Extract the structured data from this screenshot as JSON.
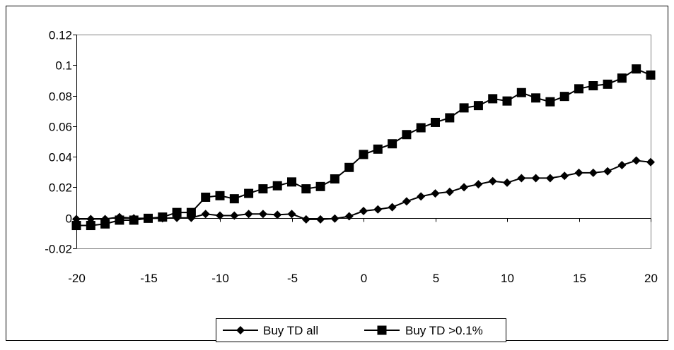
{
  "chart_data": {
    "type": "line",
    "title": "",
    "xlabel": "",
    "ylabel": "",
    "xlim": [
      -20,
      20
    ],
    "ylim": [
      -0.02,
      0.12
    ],
    "x_ticks": [
      -20,
      -15,
      -10,
      -5,
      0,
      5,
      10,
      15,
      20
    ],
    "x_tick_labels": [
      "-20",
      "-15",
      "-10",
      "-5",
      "0",
      "5",
      "10",
      "15",
      "20"
    ],
    "y_ticks": [
      -0.02,
      0,
      0.02,
      0.04,
      0.06,
      0.08,
      0.1,
      0.12
    ],
    "y_tick_labels": [
      "-0.02",
      "0",
      "0.02",
      "0.04",
      "0.06",
      "0.08",
      "0.1",
      "0.12"
    ],
    "grid": false,
    "legend_position": "bottom-center",
    "x": [
      -20,
      -19,
      -18,
      -17,
      -16,
      -15,
      -14,
      -13,
      -12,
      -11,
      -10,
      -9,
      -8,
      -7,
      -6,
      -5,
      -4,
      -3,
      -2,
      -1,
      0,
      1,
      2,
      3,
      4,
      5,
      6,
      7,
      8,
      9,
      10,
      11,
      12,
      13,
      14,
      15,
      16,
      17,
      18,
      19,
      20
    ],
    "series": [
      {
        "name": "Buy TD all",
        "marker": "diamond",
        "color": "#000000",
        "values": [
          -0.0008,
          -0.0008,
          -0.0008,
          0.0005,
          -0.0003,
          -0.0003,
          -0.0003,
          0.0,
          0.0,
          0.0025,
          0.0015,
          0.0015,
          0.0025,
          0.0025,
          0.002,
          0.0025,
          -0.001,
          -0.001,
          -0.0005,
          0.001,
          0.0045,
          0.0055,
          0.007,
          0.0108,
          0.014,
          0.016,
          0.017,
          0.02,
          0.022,
          0.024,
          0.023,
          0.026,
          0.026,
          0.026,
          0.0275,
          0.0295,
          0.0295,
          0.0305,
          0.0345,
          0.0375,
          0.0365
        ]
      },
      {
        "name": "Buy TD >0.1%",
        "marker": "square",
        "color": "#000000",
        "values": [
          -0.005,
          -0.005,
          -0.004,
          -0.0015,
          -0.0015,
          -0.0003,
          0.0005,
          0.0035,
          0.0035,
          0.0135,
          0.0145,
          0.0125,
          0.016,
          0.019,
          0.021,
          0.0235,
          0.019,
          0.0205,
          0.0255,
          0.033,
          0.0415,
          0.045,
          0.0485,
          0.0545,
          0.059,
          0.0625,
          0.0655,
          0.072,
          0.0735,
          0.078,
          0.0765,
          0.082,
          0.0785,
          0.076,
          0.0795,
          0.0845,
          0.0865,
          0.0875,
          0.0915,
          0.0975,
          0.0935
        ]
      }
    ]
  }
}
